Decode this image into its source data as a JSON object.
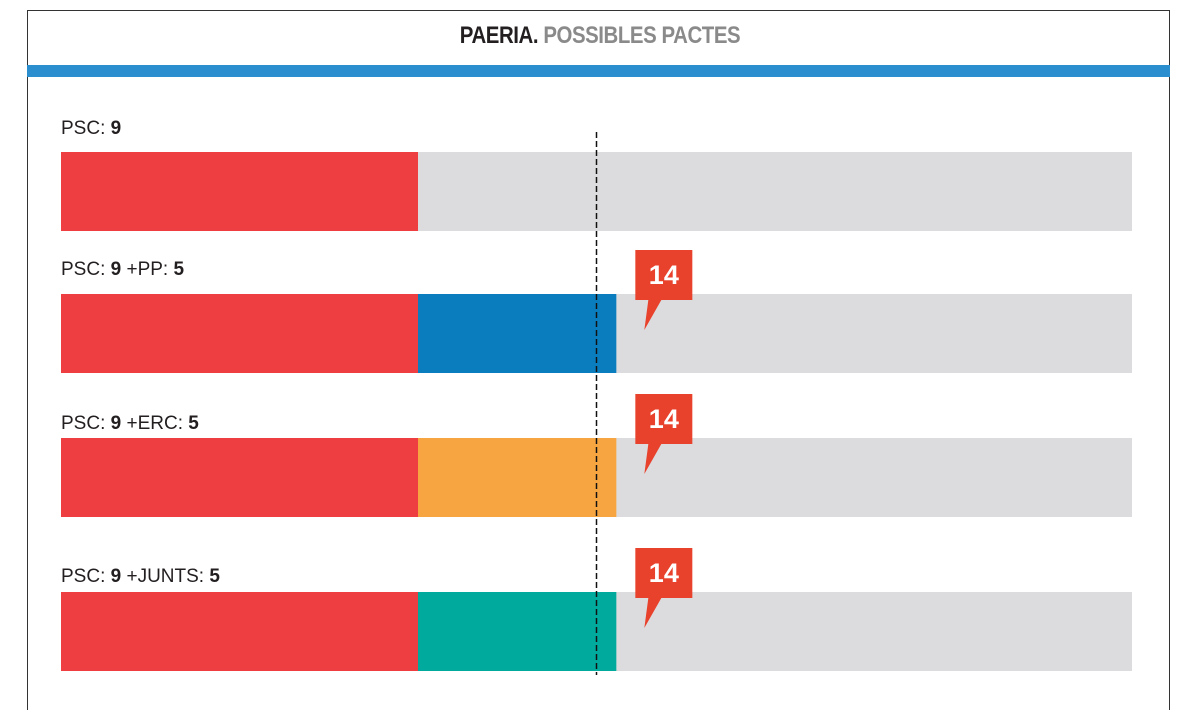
{
  "chart_data": {
    "type": "bar",
    "orientation": "horizontal-stacked",
    "title": "PAERIA.",
    "subtitle": "POSSIBLES PACTES",
    "total_seats": 27,
    "majority_line": 13.5,
    "colors": {
      "PSC": "#ef3e42",
      "PP": "#0a7dbf",
      "ERC": "#f7a540",
      "JUNTS": "#00ab9e",
      "remaining": "#dcdcde",
      "callout": "#e8412c",
      "header_stripe": "#2b8fcf"
    },
    "rows": [
      {
        "label_parts": [
          {
            "t": "PSC: ",
            "b": false
          },
          {
            "t": "9",
            "b": true
          }
        ],
        "segments": [
          {
            "party": "PSC",
            "value": 9
          }
        ],
        "callout": null
      },
      {
        "label_parts": [
          {
            "t": "PSC: ",
            "b": false
          },
          {
            "t": "9",
            "b": true
          },
          {
            "t": " +PP: ",
            "b": false
          },
          {
            "t": "5",
            "b": true
          }
        ],
        "segments": [
          {
            "party": "PSC",
            "value": 9
          },
          {
            "party": "PP",
            "value": 5
          }
        ],
        "callout": "14"
      },
      {
        "label_parts": [
          {
            "t": "PSC: ",
            "b": false
          },
          {
            "t": "9",
            "b": true
          },
          {
            "t": " +ERC: ",
            "b": false
          },
          {
            "t": "5",
            "b": true
          }
        ],
        "segments": [
          {
            "party": "PSC",
            "value": 9
          },
          {
            "party": "ERC",
            "value": 5
          }
        ],
        "callout": "14"
      },
      {
        "label_parts": [
          {
            "t": "PSC: ",
            "b": false
          },
          {
            "t": "9",
            "b": true
          },
          {
            "t": " +JUNTS: ",
            "b": false
          },
          {
            "t": "5",
            "b": true
          }
        ],
        "segments": [
          {
            "party": "PSC",
            "value": 9
          },
          {
            "party": "JUNTS",
            "value": 5
          }
        ],
        "callout": "14"
      }
    ]
  }
}
